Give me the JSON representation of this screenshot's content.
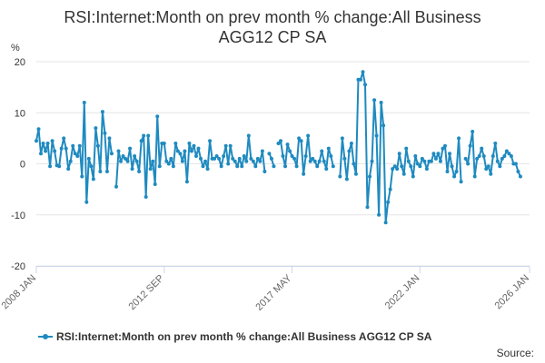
{
  "chart_data": {
    "type": "line",
    "title_line1": "RSI:Internet:Month on prev month % change:All Business",
    "title_line2": "AGG12 CP SA",
    "ylabel": "%",
    "ylim": [
      -20,
      20
    ],
    "yticks": [
      20,
      10,
      0,
      -10,
      -20
    ],
    "xlim": [
      2008.0,
      2026.0
    ],
    "xticks": [
      {
        "label": "2008 JAN",
        "value": 2008.0
      },
      {
        "label": "2012 SEP",
        "value": 2012.67
      },
      {
        "label": "2017 MAY",
        "value": 2017.33
      },
      {
        "label": "2022 JAN",
        "value": 2022.0
      },
      {
        "label": "2026 JAN",
        "value": 2026.0
      }
    ],
    "grid": true,
    "legend_position": "bottom",
    "series": [
      {
        "name": "RSI:Internet:Month on prev month % change:All Business AGG12 CP SA",
        "color": "#1f8ac0",
        "start_year": 2008,
        "start_month": 1,
        "values": [
          4.5,
          6.8,
          2.0,
          4.0,
          2.5,
          4.0,
          -0.5,
          4.5,
          2.5,
          -0.3,
          -0.5,
          3.0,
          5.0,
          3.0,
          -1.0,
          0.5,
          3.5,
          2.0,
          1.5,
          3.5,
          -2.5,
          12.0,
          -7.5,
          1.0,
          -0.5,
          -3.0,
          7.0,
          3.5,
          -1.5,
          10.2,
          6.0,
          -1.5,
          5.0,
          2.0,
          null,
          -4.5,
          2.5,
          0.5,
          1.5,
          1.0,
          0.5,
          3.0,
          -1.0,
          1.5,
          0.5,
          -1.5,
          4.5,
          5.5,
          -6.5,
          5.5,
          -1.0,
          0.5,
          -4.0,
          9.3,
          -0.5,
          4.0,
          4.0,
          0.5,
          0.0,
          1.0,
          -0.5,
          4.0,
          2.5,
          2.0,
          0.5,
          2.5,
          -3.5,
          4.0,
          2.5,
          3.5,
          1.5,
          3.0,
          1.0,
          -0.5,
          0.5,
          -1.0,
          4.5,
          1.0,
          1.0,
          1.5,
          1.0,
          -0.5,
          1.5,
          3.5,
          0.0,
          3.5,
          1.0,
          0.5,
          -0.5,
          1.0,
          -0.5,
          1.5,
          0.5,
          5.5,
          1.0,
          0.5,
          -0.5,
          1.0,
          0.5,
          2.5,
          -1.5,
          null,
          2.0,
          1.0,
          -0.5,
          null,
          4.0,
          4.5,
          1.5,
          -0.5,
          3.8,
          2.5,
          1.5,
          1.0,
          -0.5,
          5.0,
          4.5,
          -2.0,
          1.5,
          5.5,
          0.5,
          1.0,
          0.5,
          -0.5,
          0.5,
          2.5,
          0.5,
          -1.0,
          3.0,
          1.5,
          -0.5,
          null,
          null,
          -2.5,
          5.0,
          1.0,
          -3.0,
          2.5,
          4.0,
          0.0,
          -2.0,
          16.5,
          16.5,
          18.0,
          15.5,
          -8.5,
          -2.5,
          0.5,
          12.5,
          5.5,
          -10.0,
          12.0,
          7.5,
          -11.5,
          -7.5,
          -5.0,
          -1.0,
          -0.5,
          -1.0,
          2.0,
          -0.5,
          -2.0,
          3.0,
          0.5,
          -0.5,
          -2.5,
          1.5,
          0.0,
          -0.5,
          1.0,
          0.5,
          -1.0,
          0.5,
          0.5,
          2.0,
          1.0,
          2.0,
          0.5,
          3.0,
          3.5,
          -1.5,
          2.0,
          -0.5,
          -2.5,
          -1.5,
          5.0,
          -3.5,
          null,
          1.0,
          0.0,
          3.5,
          6.3,
          -2.5,
          1.0,
          1.5,
          3.0,
          1.5,
          -1.0,
          -0.5,
          -2.0,
          1.5,
          4.0,
          0.5,
          -0.5,
          1.0,
          1.5,
          2.5,
          2.0,
          1.5,
          0.0,
          0.0,
          -1.5,
          -2.5
        ]
      }
    ]
  },
  "legend": {
    "label": "RSI:Internet:Month on prev month % change:All Business AGG12 CP SA"
  },
  "source_label": "Source:"
}
